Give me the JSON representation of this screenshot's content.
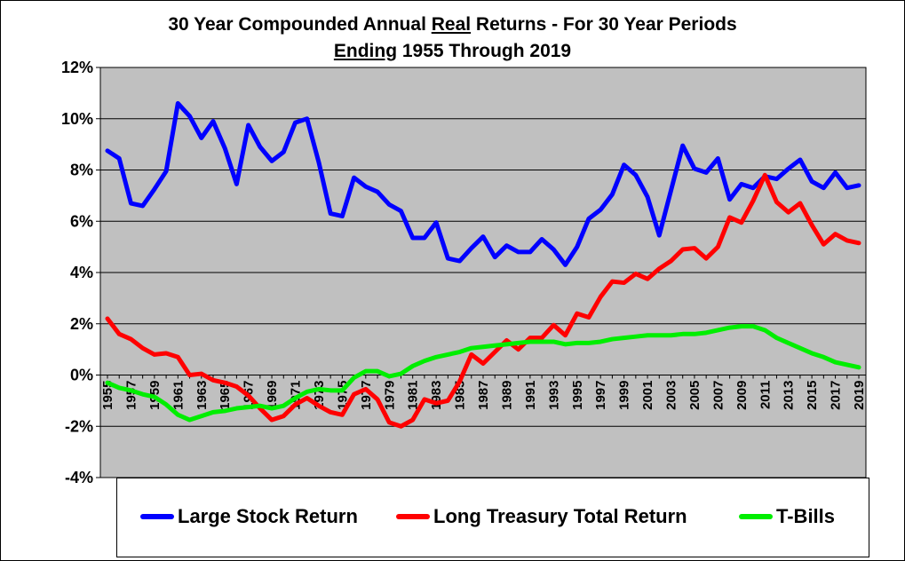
{
  "chart_data": {
    "type": "line",
    "title_line1_prefix": "30 Year Compounded Annual ",
    "title_line1_emph": "Real",
    "title_line1_suffix": " Returns - For 30 Year Periods",
    "title_line2_emph": "Ending",
    "title_line2_suffix": " 1955 Through 2019",
    "xlabel": "",
    "ylabel": "",
    "ylim": [
      -4,
      12
    ],
    "yticks": [
      -4,
      -2,
      0,
      2,
      4,
      6,
      8,
      10,
      12
    ],
    "ytick_labels": [
      "-4%",
      "-2%",
      "0%",
      "2%",
      "4%",
      "6%",
      "8%",
      "10%",
      "12%"
    ],
    "x": [
      1955,
      1956,
      1957,
      1958,
      1959,
      1960,
      1961,
      1962,
      1963,
      1964,
      1965,
      1966,
      1967,
      1968,
      1969,
      1970,
      1971,
      1972,
      1973,
      1974,
      1975,
      1976,
      1977,
      1978,
      1979,
      1980,
      1981,
      1982,
      1983,
      1984,
      1985,
      1986,
      1987,
      1988,
      1989,
      1990,
      1991,
      1992,
      1993,
      1994,
      1995,
      1996,
      1997,
      1998,
      1999,
      2000,
      2001,
      2002,
      2003,
      2004,
      2005,
      2006,
      2007,
      2008,
      2009,
      2010,
      2011,
      2012,
      2013,
      2014,
      2015,
      2016,
      2017,
      2018,
      2019
    ],
    "xtick_labels": [
      "1955",
      "1957",
      "1959",
      "1961",
      "1963",
      "1965",
      "1967",
      "1969",
      "1971",
      "1973",
      "1975",
      "1977",
      "1979",
      "1981",
      "1983",
      "1985",
      "1987",
      "1989",
      "1991",
      "1993",
      "1995",
      "1997",
      "1999",
      "2001",
      "2003",
      "2005",
      "2007",
      "2009",
      "2011",
      "2013",
      "2015",
      "2017",
      "2019"
    ],
    "grid": true,
    "plot_background": "#c0c0c0",
    "legend_position": "bottom",
    "series": [
      {
        "name": "Large Stock Return",
        "color": "#0000ff",
        "values": [
          8.75,
          8.45,
          6.7,
          6.6,
          7.25,
          7.95,
          10.6,
          10.1,
          9.25,
          9.9,
          8.85,
          7.45,
          9.75,
          8.9,
          8.35,
          8.7,
          9.85,
          10.0,
          8.3,
          6.3,
          6.2,
          7.7,
          7.35,
          7.15,
          6.65,
          6.4,
          5.35,
          5.35,
          5.95,
          4.55,
          4.45,
          4.95,
          5.4,
          4.6,
          5.05,
          4.8,
          4.8,
          5.3,
          4.9,
          4.3,
          5.0,
          6.1,
          6.45,
          7.05,
          8.2,
          7.8,
          6.95,
          5.45,
          7.2,
          8.95,
          8.05,
          7.9,
          8.45,
          6.85,
          7.45,
          7.3,
          7.75,
          7.65,
          8.05,
          8.4,
          7.55,
          7.3,
          7.9,
          7.3,
          7.4
        ]
      },
      {
        "name": "Long Treasury Total Return",
        "color": "#ff0000",
        "values": [
          2.2,
          1.6,
          1.4,
          1.05,
          0.8,
          0.85,
          0.7,
          0.0,
          0.05,
          -0.2,
          -0.3,
          -0.45,
          -0.8,
          -1.3,
          -1.75,
          -1.6,
          -1.15,
          -0.9,
          -1.2,
          -1.45,
          -1.55,
          -0.75,
          -0.55,
          -0.95,
          -1.85,
          -2.0,
          -1.75,
          -0.95,
          -1.1,
          -1.0,
          -0.25,
          0.8,
          0.45,
          0.9,
          1.35,
          1.0,
          1.45,
          1.45,
          1.95,
          1.55,
          2.4,
          2.25,
          3.05,
          3.65,
          3.6,
          3.95,
          3.75,
          4.15,
          4.45,
          4.9,
          4.95,
          4.55,
          5.0,
          6.15,
          5.95,
          6.8,
          7.8,
          6.75,
          6.35,
          6.7,
          5.85,
          5.1,
          5.5,
          5.25,
          5.15
        ]
      },
      {
        "name": "T-Bills",
        "color": "#00ee00",
        "values": [
          -0.3,
          -0.5,
          -0.6,
          -0.75,
          -0.85,
          -1.15,
          -1.55,
          -1.75,
          -1.6,
          -1.45,
          -1.4,
          -1.3,
          -1.25,
          -1.2,
          -1.3,
          -1.2,
          -0.9,
          -0.65,
          -0.55,
          -0.6,
          -0.6,
          -0.1,
          0.15,
          0.15,
          -0.05,
          0.05,
          0.35,
          0.55,
          0.7,
          0.8,
          0.9,
          1.05,
          1.1,
          1.15,
          1.2,
          1.25,
          1.3,
          1.3,
          1.3,
          1.2,
          1.25,
          1.25,
          1.3,
          1.4,
          1.45,
          1.5,
          1.55,
          1.55,
          1.55,
          1.6,
          1.6,
          1.65,
          1.75,
          1.85,
          1.9,
          1.9,
          1.75,
          1.45,
          1.25,
          1.05,
          0.85,
          0.7,
          0.5,
          0.4,
          0.3
        ]
      }
    ]
  }
}
